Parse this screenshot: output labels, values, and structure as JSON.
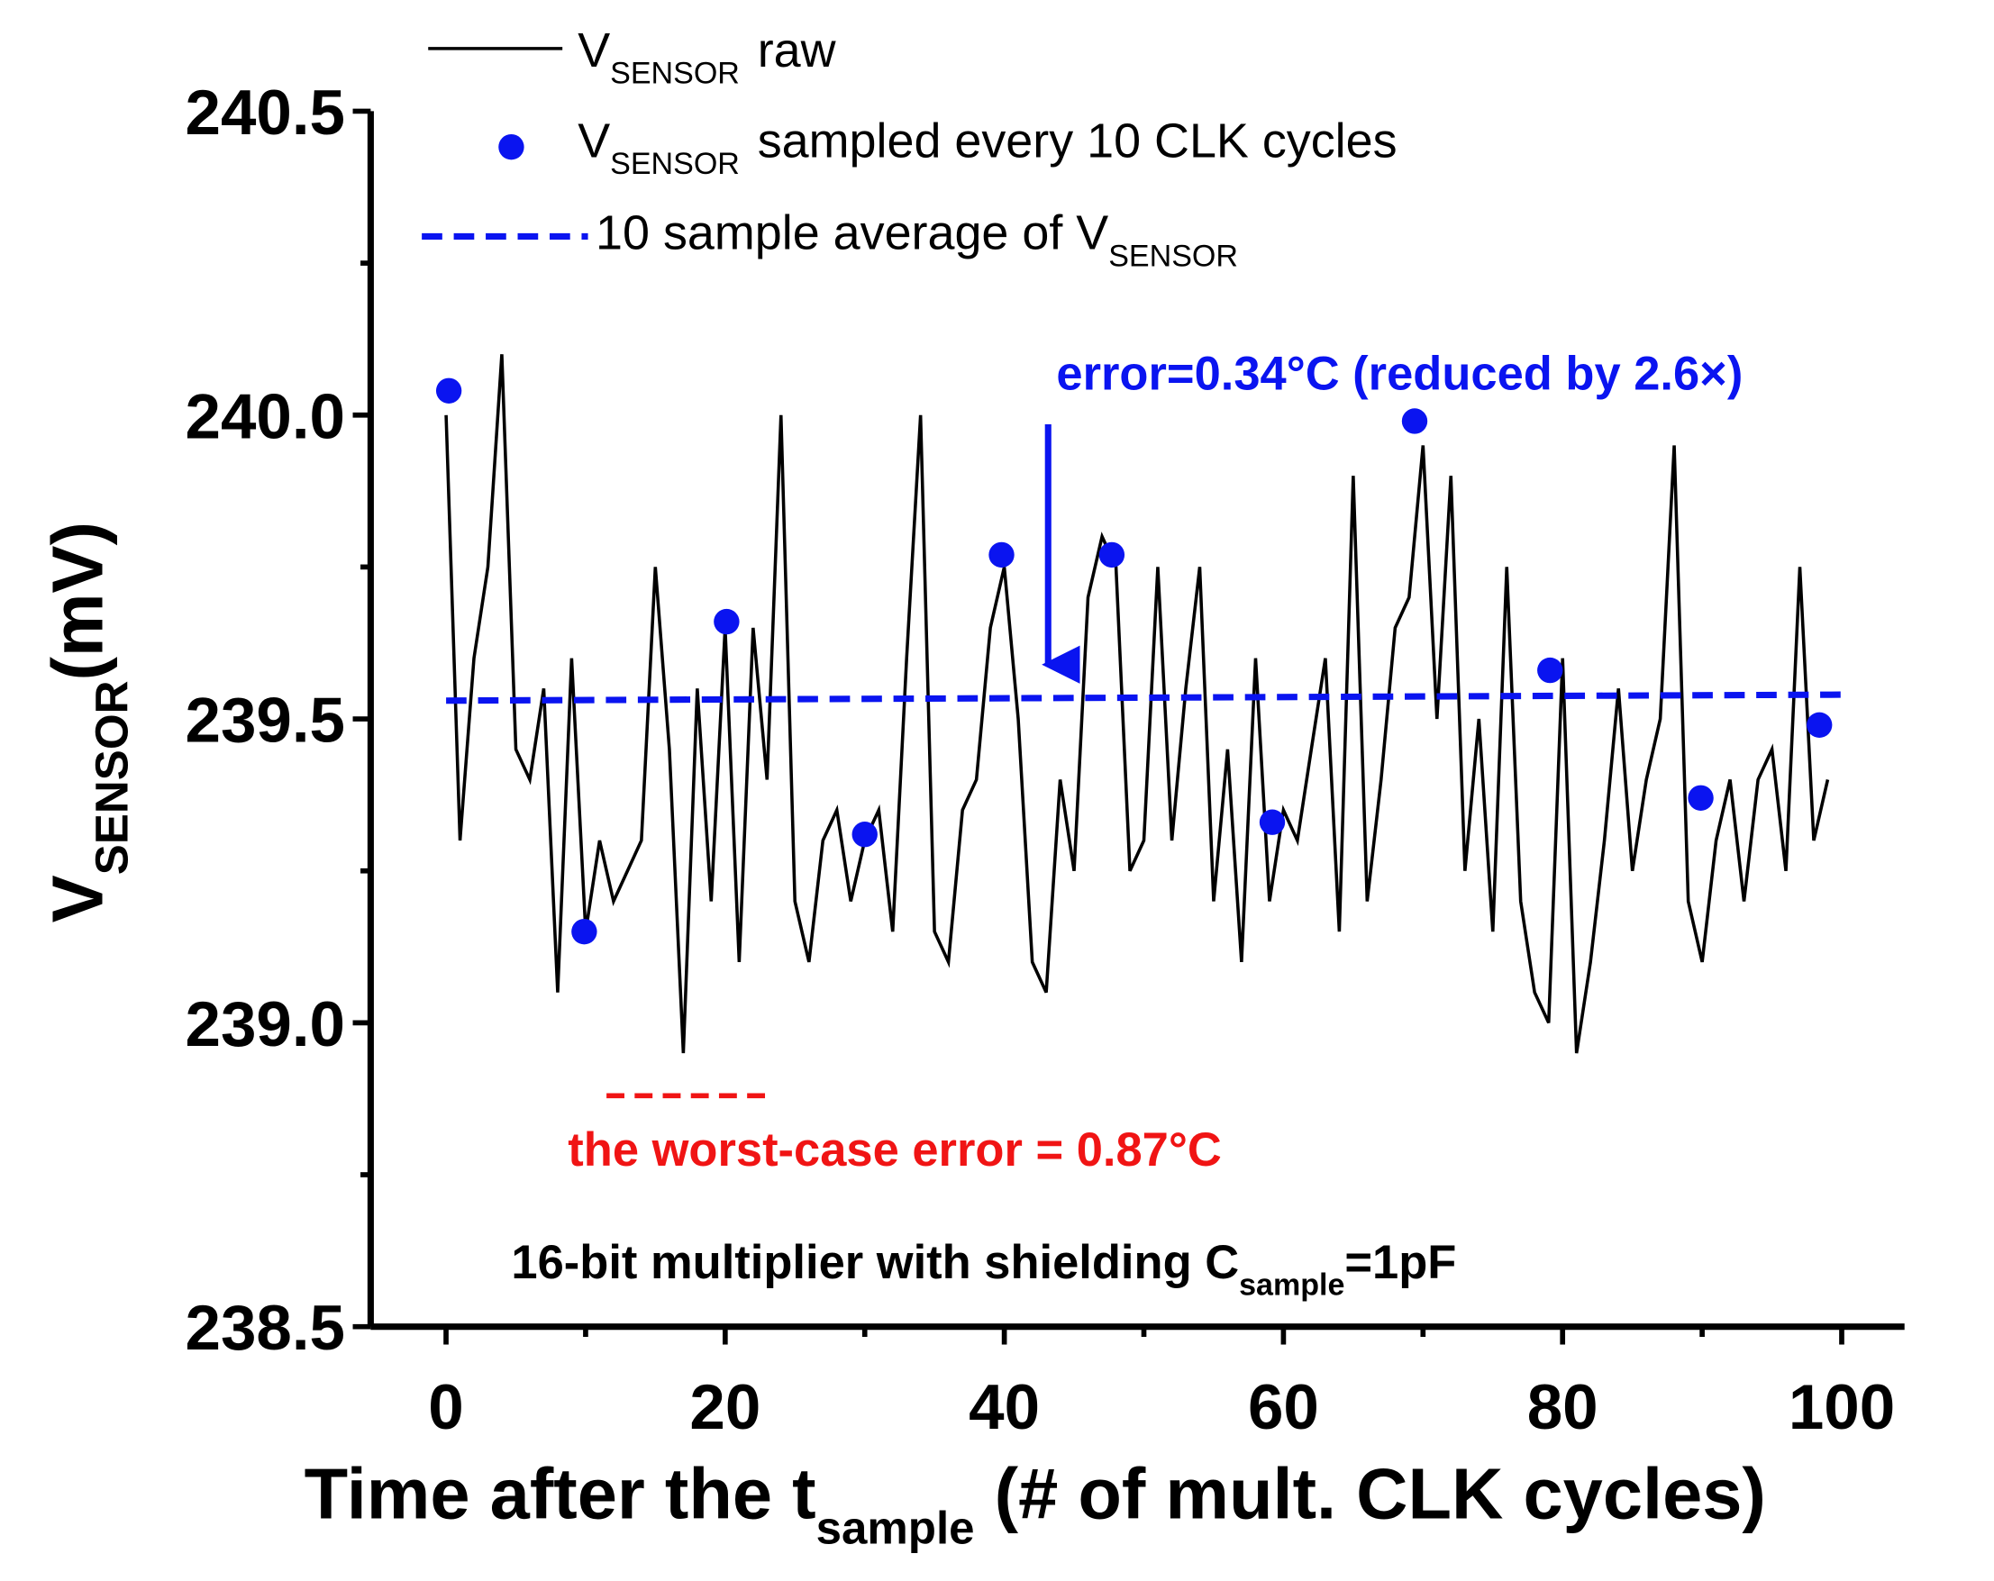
{
  "chart_data": {
    "type": "line",
    "x_label": {
      "main": "Time after the t",
      "sub": "sample",
      "rest": " (# of mult. CLK cycles)"
    },
    "y_label": {
      "main": "V",
      "sub": "SENSOR",
      "rest": "(mV)"
    },
    "xlim": [
      -5.4,
      104.5
    ],
    "ylim": [
      238.5,
      240.5
    ],
    "xticks": [
      0,
      20,
      40,
      60,
      80,
      100
    ],
    "xminorticks": [
      10,
      30,
      50,
      70,
      90
    ],
    "yticks": [
      238.5,
      {
        "value": 239,
        "label": "239.0"
      },
      239.5,
      {
        "value": 240,
        "label": "240.0"
      },
      240.5
    ],
    "yminorticks": [
      238.75,
      239.25,
      239.75,
      240.25
    ],
    "series": [
      {
        "name": {
          "main": "V",
          "sub": "SENSOR",
          "rest": "raw"
        },
        "type": "line",
        "color": "#000000",
        "x": [
          0,
          1,
          2,
          3,
          4,
          5,
          6,
          7,
          8,
          9,
          10,
          11,
          12,
          13,
          14,
          15,
          16,
          17,
          18,
          19,
          20,
          21,
          22,
          23,
          24,
          25,
          26,
          27,
          28,
          29,
          30,
          31,
          32,
          33,
          34,
          35,
          36,
          37,
          38,
          39,
          40,
          41,
          42,
          43,
          44,
          45,
          46,
          47,
          48,
          49,
          50,
          51,
          52,
          53,
          54,
          55,
          56,
          57,
          58,
          59,
          60,
          61,
          62,
          63,
          64,
          65,
          66,
          67,
          68,
          69,
          70,
          71,
          72,
          73,
          74,
          75,
          76,
          77,
          78,
          79,
          80,
          81,
          82,
          83,
          84,
          85,
          86,
          87,
          88,
          89,
          90,
          91,
          92,
          93,
          94,
          95,
          96,
          97,
          98,
          99
        ],
        "values": [
          240.0,
          239.3,
          239.6,
          239.75,
          240.1,
          239.45,
          239.4,
          239.55,
          239.05,
          239.6,
          239.15,
          239.3,
          239.2,
          239.25,
          239.3,
          239.75,
          239.45,
          238.95,
          239.55,
          239.2,
          239.65,
          239.1,
          239.65,
          239.4,
          240.0,
          239.2,
          239.1,
          239.3,
          239.35,
          239.2,
          239.3,
          239.35,
          239.15,
          239.6,
          240.0,
          239.15,
          239.1,
          239.35,
          239.4,
          239.65,
          239.75,
          239.5,
          239.1,
          239.05,
          239.4,
          239.25,
          239.7,
          239.8,
          239.75,
          239.25,
          239.3,
          239.75,
          239.3,
          239.55,
          239.75,
          239.2,
          239.45,
          239.1,
          239.6,
          239.2,
          239.35,
          239.3,
          239.45,
          239.6,
          239.15,
          239.9,
          239.2,
          239.4,
          239.65,
          239.7,
          239.95,
          239.5,
          239.9,
          239.25,
          239.5,
          239.15,
          239.75,
          239.2,
          239.05,
          239.0,
          239.6,
          238.95,
          239.1,
          239.3,
          239.55,
          239.25,
          239.4,
          239.5,
          239.95,
          239.2,
          239.1,
          239.3,
          239.4,
          239.2,
          239.4,
          239.45,
          239.25,
          239.75,
          239.3,
          239.4
        ]
      },
      {
        "name": {
          "main": "V",
          "sub": "SENSOR",
          "rest": "sampled every 10 CLK cycles"
        },
        "type": "scatter",
        "color": "#0a14f0",
        "x": [
          0.2,
          9.9,
          20.1,
          30,
          39.8,
          47.7,
          59.2,
          69.4,
          79.1,
          89.9,
          98.4
        ],
        "values": [
          240.04,
          239.15,
          239.66,
          239.31,
          239.77,
          239.77,
          239.33,
          239.99,
          239.58,
          239.37,
          239.49
        ]
      },
      {
        "name": {
          "main": "10 sample average of V",
          "sub": "SENSOR"
        },
        "type": "dashed",
        "color": "#0a14f0",
        "x": [
          0,
          100
        ],
        "values": [
          239.53,
          239.54
        ]
      }
    ],
    "worst_case_line": {
      "color": "#f01414",
      "x": [
        11.5,
        23
      ],
      "values": [
        238.88,
        238.88
      ]
    },
    "annotations": {
      "error": "error=0.34°C (reduced by 2.6×)",
      "worst": "the worst-case error = 0.87°C",
      "config": {
        "main": "16-bit multiplier with shielding C",
        "sub": "sample",
        "rest": "=1pF"
      }
    }
  }
}
